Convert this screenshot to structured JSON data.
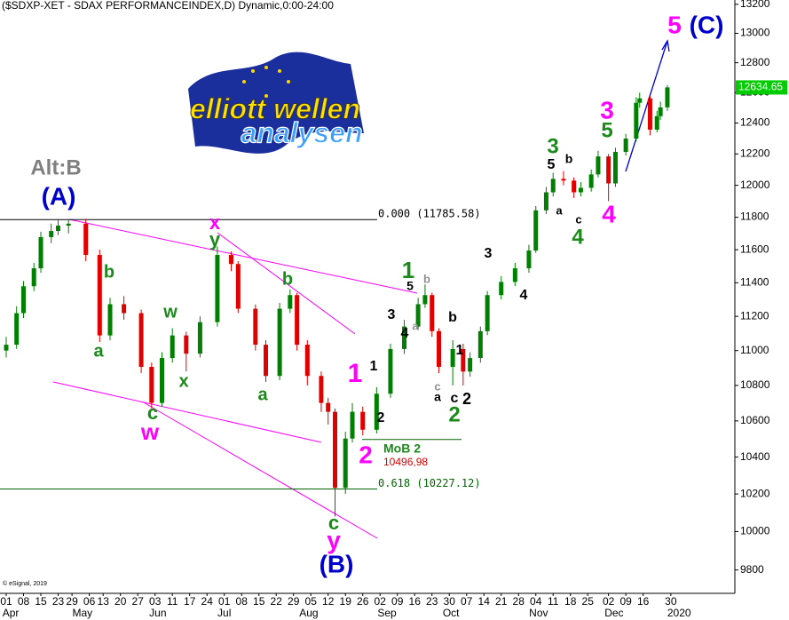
{
  "chart_data": {
    "type": "candlestick",
    "title": "($SDXP-XET - SDAX PERFORMANCEINDEX,D) Dynamic,0:00-24:00",
    "source": "© eSignal, 2019",
    "logo": {
      "line1": "elliott wellen",
      "line2": "analysen"
    },
    "log_y": true,
    "ylim": [
      9680,
      13230
    ],
    "yticks": [
      9800,
      10000,
      10200,
      10400,
      10600,
      10800,
      11000,
      11200,
      11400,
      11600,
      11800,
      12000,
      12200,
      12400,
      12600,
      12800,
      13000,
      13200
    ],
    "xlim": [
      -1.795,
      210.5
    ],
    "xticks": [
      {
        "value": 0,
        "label": "01"
      },
      {
        "value": 5,
        "label": "08"
      },
      {
        "value": 10,
        "label": "15"
      },
      {
        "value": 15,
        "label": "23"
      },
      {
        "value": 19,
        "label": "29"
      },
      {
        "value": 24,
        "label": "06"
      },
      {
        "value": 28,
        "label": "13"
      },
      {
        "value": 33,
        "label": "20"
      },
      {
        "value": 38,
        "label": "27"
      },
      {
        "value": 43,
        "label": "03"
      },
      {
        "value": 48,
        "label": "11"
      },
      {
        "value": 53,
        "label": "17"
      },
      {
        "value": 58,
        "label": "24"
      },
      {
        "value": 63,
        "label": "01"
      },
      {
        "value": 68,
        "label": "08"
      },
      {
        "value": 73,
        "label": "15"
      },
      {
        "value": 78,
        "label": "22"
      },
      {
        "value": 83,
        "label": "29"
      },
      {
        "value": 88,
        "label": "05"
      },
      {
        "value": 93,
        "label": "12"
      },
      {
        "value": 98,
        "label": "19"
      },
      {
        "value": 103,
        "label": "26"
      },
      {
        "value": 108,
        "label": "02"
      },
      {
        "value": 113,
        "label": "09"
      },
      {
        "value": 118,
        "label": "16"
      },
      {
        "value": 123,
        "label": "23"
      },
      {
        "value": 128,
        "label": "30"
      },
      {
        "value": 133,
        "label": "07"
      },
      {
        "value": 138,
        "label": "14"
      },
      {
        "value": 143,
        "label": "21"
      },
      {
        "value": 148,
        "label": "28"
      },
      {
        "value": 153,
        "label": "04"
      },
      {
        "value": 158,
        "label": "11"
      },
      {
        "value": 163,
        "label": "18"
      },
      {
        "value": 168,
        "label": "25"
      },
      {
        "value": 174,
        "label": "02"
      },
      {
        "value": 179,
        "label": "09"
      },
      {
        "value": 184,
        "label": "16"
      },
      {
        "value": 192,
        "label": "30"
      }
    ],
    "month_ticks": [
      {
        "value": 1.3,
        "label": "Apr"
      },
      {
        "value": 22,
        "label": "May"
      },
      {
        "value": 43.8,
        "label": "Jun"
      },
      {
        "value": 63,
        "label": "Jul"
      },
      {
        "value": 87.4,
        "label": "Aug"
      },
      {
        "value": 110,
        "label": "Sep"
      },
      {
        "value": 128.5,
        "label": "Oct"
      },
      {
        "value": 153.8,
        "label": "Nov"
      },
      {
        "value": 175.6,
        "label": "Dec"
      },
      {
        "value": 194.4,
        "label": "2020"
      }
    ],
    "up_color": "#008000",
    "down_color": "#e00000",
    "x": [
      0,
      3,
      5,
      8,
      10,
      13,
      15,
      18,
      23,
      27,
      30,
      34,
      39,
      42,
      45,
      48,
      52,
      56,
      61,
      65,
      67,
      72,
      75,
      79,
      82,
      84,
      87,
      91,
      93,
      95,
      98,
      100,
      103,
      107,
      111,
      115,
      119,
      121,
      123,
      125,
      129,
      132,
      134,
      137,
      139,
      143,
      147,
      151,
      153,
      156,
      158,
      161,
      164,
      166,
      169,
      171,
      174,
      176,
      179,
      182,
      183,
      186,
      188,
      189,
      191
    ],
    "open": [
      11000,
      11034,
      11219,
      11379,
      11487,
      11677,
      11715,
      11748,
      11760,
      11568,
      11088,
      11272,
      11219,
      10906,
      10701,
      10957,
      11088,
      10982,
      11166,
      11568,
      11513,
      11245,
      11034,
      10854,
      11245,
      11326,
      11034,
      10854,
      10701,
      10651,
      10233,
      10502,
      10651,
      10551,
      10753,
      11009,
      11140,
      11272,
      11326,
      11113,
      10906,
      11009,
      10879,
      10957,
      11113,
      11326,
      11405,
      11487,
      11595,
      11843,
      11956,
      12041,
      12030,
      11956,
      11984,
      12069,
      12184,
      12012,
      12213,
      12299,
      12533,
      12562,
      12357,
      12445,
      12503
    ],
    "high": [
      11080,
      11260,
      11410,
      11520,
      11710,
      11760,
      11790,
      11786,
      11790,
      11600,
      11310,
      11320,
      11240,
      10930,
      10990,
      11130,
      11110,
      11200,
      11620,
      11590,
      11530,
      11270,
      11060,
      11280,
      11360,
      11340,
      11060,
      10880,
      10730,
      10670,
      10540,
      10700,
      10680,
      10790,
      11040,
      11180,
      11310,
      11390,
      11340,
      11130,
      11060,
      11040,
      10990,
      11140,
      11350,
      11440,
      11520,
      11630,
      11870,
      11990,
      12080,
      12090,
      12050,
      12020,
      12100,
      12220,
      12200,
      12240,
      12330,
      12570,
      12600,
      12580,
      12480,
      12540,
      12650
    ],
    "low": [
      10960,
      11010,
      11190,
      11350,
      11460,
      11640,
      11690,
      11700,
      11530,
      11050,
      11060,
      11180,
      10870,
      10670,
      10680,
      10930,
      10880,
      10960,
      11140,
      11470,
      11220,
      11000,
      10820,
      10830,
      11220,
      11000,
      10800,
      10650,
      10580,
      10080,
      10200,
      10480,
      10520,
      10530,
      10730,
      10980,
      11120,
      11250,
      11080,
      10870,
      10800,
      10800,
      10850,
      10930,
      11090,
      11300,
      11380,
      11460,
      11580,
      11820,
      11930,
      12000,
      11920,
      11930,
      11960,
      12050,
      11900,
      11990,
      12190,
      12280,
      12500,
      12320,
      12340,
      12420,
      12480
    ],
    "close": [
      11034,
      11219,
      11379,
      11487,
      11677,
      11715,
      11748,
      11760,
      11568,
      11088,
      11272,
      11219,
      10906,
      10701,
      10957,
      11088,
      10982,
      11166,
      11568,
      11513,
      11245,
      11034,
      10854,
      11245,
      11326,
      11034,
      10854,
      10701,
      10651,
      10233,
      10502,
      10651,
      10551,
      10753,
      11009,
      11140,
      11272,
      11326,
      11113,
      10906,
      11009,
      10879,
      10957,
      11113,
      11326,
      11405,
      11487,
      11595,
      11843,
      11956,
      12041,
      12030,
      11956,
      11984,
      12069,
      12184,
      12012,
      12213,
      12299,
      12533,
      12562,
      12357,
      12445,
      12503,
      12635
    ],
    "last_price": 12634.65,
    "last_price_color": "#00cc00",
    "levels": [
      {
        "value": 11785.58,
        "label": "0.000 (11785.58)",
        "color": "#000000"
      },
      {
        "value": 10227.12,
        "label": "0.618 (10227.12)",
        "color": "#006400"
      },
      {
        "value": 10496.98,
        "label": "10496,98",
        "color": "#e00000"
      }
    ],
    "level_note": "MoB 2",
    "annotations": [
      {
        "text": "Alt:B",
        "color": "#808080"
      },
      {
        "text": "(A)",
        "color": "#0000cc"
      },
      {
        "text": "x",
        "color": "#ff00ff"
      },
      {
        "text": "y",
        "color": "#1a8a1a"
      },
      {
        "text": "b",
        "color": "#1a8a1a"
      },
      {
        "text": "a",
        "color": "#1a8a1a"
      },
      {
        "text": "w",
        "color": "#1a8a1a"
      },
      {
        "text": "x",
        "color": "#1a8a1a"
      },
      {
        "text": "c",
        "color": "#1a8a1a"
      },
      {
        "text": "w",
        "color": "#ff00ff"
      },
      {
        "text": "b",
        "color": "#1a8a1a"
      },
      {
        "text": "a",
        "color": "#1a8a1a"
      },
      {
        "text": "c",
        "color": "#1a8a1a"
      },
      {
        "text": "y",
        "color": "#ff00ff"
      },
      {
        "text": "(B)",
        "color": "#0000cc"
      },
      {
        "text": "1",
        "color": "#ff00ff"
      },
      {
        "text": "2",
        "color": "#ff00ff"
      },
      {
        "text": "1",
        "color": "#000000"
      },
      {
        "text": "2",
        "color": "#000000"
      },
      {
        "text": "3",
        "color": "#000000"
      },
      {
        "text": "4",
        "color": "#000000"
      },
      {
        "text": "5",
        "color": "#000000"
      },
      {
        "text": "1",
        "color": "#1a8a1a"
      },
      {
        "text": "b",
        "color": "#909090"
      },
      {
        "text": "a",
        "color": "#909090"
      },
      {
        "text": "c",
        "color": "#909090"
      },
      {
        "text": "a",
        "color": "#000000"
      },
      {
        "text": "b",
        "color": "#000000"
      },
      {
        "text": "1",
        "color": "#000000"
      },
      {
        "text": "c",
        "color": "#000000"
      },
      {
        "text": "2",
        "color": "#000000"
      },
      {
        "text": "2",
        "color": "#1a8a1a"
      },
      {
        "text": "3",
        "color": "#000000"
      },
      {
        "text": "4",
        "color": "#000000"
      },
      {
        "text": "3",
        "color": "#1a8a1a"
      },
      {
        "text": "5",
        "color": "#000000"
      },
      {
        "text": "b",
        "color": "#000000"
      },
      {
        "text": "a",
        "color": "#000000"
      },
      {
        "text": "c",
        "color": "#000000"
      },
      {
        "text": "4",
        "color": "#1a8a1a"
      },
      {
        "text": "3",
        "color": "#ff00ff"
      },
      {
        "text": "5",
        "color": "#1a8a1a"
      },
      {
        "text": "4",
        "color": "#ff00ff"
      },
      {
        "text": "5",
        "color": "#ff00ff"
      },
      {
        "text": "(C)",
        "color": "#0000cc"
      }
    ]
  }
}
